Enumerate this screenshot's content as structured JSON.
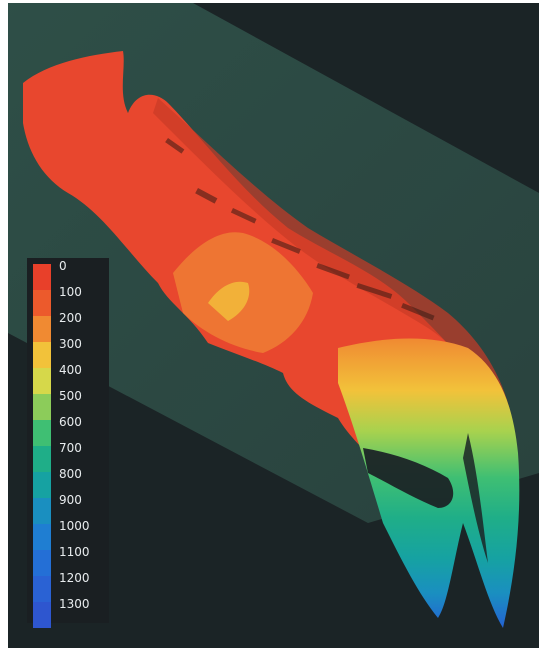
{
  "legend": {
    "ticks": [
      "0",
      "100",
      "200",
      "300",
      "400",
      "500",
      "600",
      "700",
      "800",
      "900",
      "1000",
      "1100",
      "1200",
      "1300"
    ],
    "colors": [
      "#e8402a",
      "#ec5a2c",
      "#f08a32",
      "#f2c23a",
      "#d6d84a",
      "#8ccc5a",
      "#3fbf73",
      "#1fae88",
      "#16a2a2",
      "#1a8fc0",
      "#1f7ed2",
      "#246fd6",
      "#2a62d4",
      "#2e56cf"
    ]
  },
  "scene": {
    "background_color": "#1b2426",
    "plane_color": "#2e5048",
    "surface_main_color": "#e8472e"
  }
}
